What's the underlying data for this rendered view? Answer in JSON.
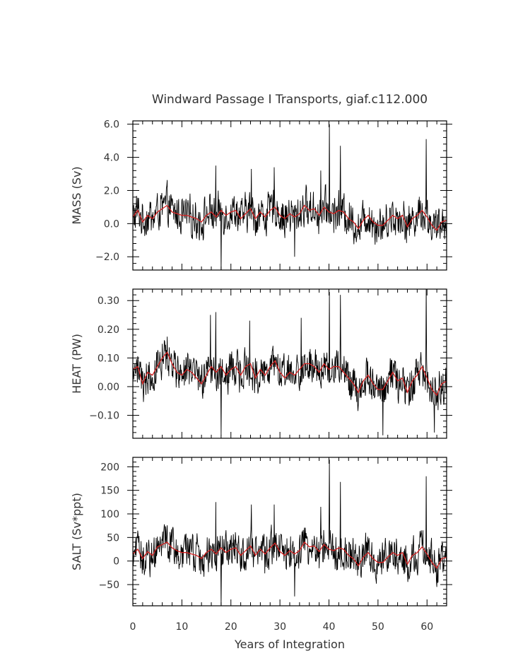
{
  "chart_data": {
    "type": "line",
    "title": "Windward Passage I Transports, giaf.c112.000",
    "xlabel": "Years of Integration",
    "xlim": [
      0,
      64
    ],
    "xticks": [
      0,
      10,
      20,
      30,
      40,
      50,
      60
    ],
    "xtick_labels": [
      "0",
      "10",
      "20",
      "30",
      "40",
      "50",
      "60"
    ],
    "line_colors": {
      "raw": "#000000",
      "smooth": "#d42020"
    },
    "panels": [
      {
        "ylabel": "MASS (Sv)",
        "ylim": [
          -2.8,
          6.2
        ],
        "yticks": [
          -2.0,
          0.0,
          2.0,
          4.0,
          6.0
        ],
        "ytick_labels": [
          "−2.0",
          "0.0",
          "2.0",
          "4.0",
          "6.0"
        ],
        "smooth": {
          "x": [
            0,
            1,
            2,
            3,
            4,
            5,
            6,
            7,
            8,
            9,
            10,
            11,
            12,
            13,
            14,
            15,
            16,
            17,
            18,
            19,
            20,
            21,
            22,
            23,
            24,
            25,
            26,
            27,
            28,
            29,
            30,
            31,
            32,
            33,
            34,
            35,
            36,
            37,
            38,
            39,
            40,
            41,
            42,
            43,
            44,
            45,
            46,
            47,
            48,
            49,
            50,
            51,
            52,
            53,
            54,
            55,
            56,
            57,
            58,
            59,
            60,
            61,
            62,
            63,
            64
          ],
          "y": [
            0.4,
            0.8,
            0.1,
            0.5,
            0.3,
            0.7,
            0.9,
            1.1,
            0.7,
            0.6,
            0.5,
            0.5,
            0.4,
            0.3,
            0.1,
            0.5,
            0.7,
            0.4,
            0.8,
            0.5,
            0.7,
            0.8,
            0.3,
            0.6,
            0.9,
            0.3,
            0.7,
            0.4,
            0.8,
            1.0,
            0.5,
            0.3,
            0.6,
            0.4,
            0.6,
            1.1,
            0.8,
            0.9,
            0.5,
            1.0,
            0.7,
            0.6,
            0.8,
            0.7,
            0.3,
            0.1,
            -0.3,
            0.2,
            0.5,
            0.1,
            -0.1,
            -0.1,
            0.2,
            0.5,
            0.3,
            0.5,
            -0.2,
            0.3,
            0.5,
            0.8,
            0.4,
            -0.1,
            -0.4,
            0.1,
            0.2
          ]
        },
        "peaks": [
          [
            16.9,
            3.5
          ],
          [
            18.0,
            -2.8
          ],
          [
            24.2,
            3.3
          ],
          [
            28.8,
            3.4
          ],
          [
            33.0,
            -2.0
          ],
          [
            38.3,
            3.2
          ],
          [
            40.1,
            6.0
          ],
          [
            42.3,
            4.7
          ],
          [
            59.8,
            5.1
          ]
        ]
      },
      {
        "ylabel": "HEAT (PW)",
        "ylim": [
          -0.18,
          0.34
        ],
        "yticks": [
          -0.1,
          0.0,
          0.1,
          0.2,
          0.3
        ],
        "ytick_labels": [
          "−0.10",
          "0.00",
          "0.10",
          "0.20",
          "0.30"
        ],
        "smooth": {
          "x": [
            0,
            1,
            2,
            3,
            4,
            5,
            6,
            7,
            8,
            9,
            10,
            11,
            12,
            13,
            14,
            15,
            16,
            17,
            18,
            19,
            20,
            21,
            22,
            23,
            24,
            25,
            26,
            27,
            28,
            29,
            30,
            31,
            32,
            33,
            34,
            35,
            36,
            37,
            38,
            39,
            40,
            41,
            42,
            43,
            44,
            45,
            46,
            47,
            48,
            49,
            50,
            51,
            52,
            53,
            54,
            55,
            56,
            57,
            58,
            59,
            60,
            61,
            62,
            63,
            64
          ],
          "y": [
            0.06,
            0.07,
            0.01,
            0.05,
            0.04,
            0.07,
            0.1,
            0.12,
            0.08,
            0.05,
            0.04,
            0.06,
            0.05,
            0.03,
            0.01,
            0.04,
            0.07,
            0.05,
            0.07,
            0.04,
            0.06,
            0.07,
            0.04,
            0.07,
            0.08,
            0.03,
            0.06,
            0.04,
            0.07,
            0.09,
            0.05,
            0.03,
            0.05,
            0.04,
            0.06,
            0.08,
            0.08,
            0.07,
            0.05,
            0.08,
            0.06,
            0.07,
            0.07,
            0.05,
            0.03,
            0.01,
            -0.02,
            0.02,
            0.04,
            0.01,
            -0.01,
            -0.01,
            0.02,
            0.05,
            0.02,
            0.03,
            -0.02,
            0.02,
            0.04,
            0.07,
            0.03,
            -0.01,
            -0.03,
            0.01,
            0.02
          ]
        },
        "peaks": [
          [
            15.8,
            0.25
          ],
          [
            16.9,
            0.26
          ],
          [
            18.0,
            -0.17
          ],
          [
            23.8,
            0.23
          ],
          [
            34.3,
            0.24
          ],
          [
            40.1,
            0.33
          ],
          [
            42.3,
            0.32
          ],
          [
            51.0,
            -0.17
          ],
          [
            59.8,
            0.35
          ],
          [
            61.5,
            -0.16
          ]
        ]
      },
      {
        "ylabel": "SALT (Sv*ppt)",
        "ylim": [
          -95,
          220
        ],
        "yticks": [
          -50,
          0,
          50,
          100,
          150,
          200
        ],
        "ytick_labels": [
          "−50",
          "0",
          "50",
          "100",
          "150",
          "200"
        ],
        "smooth": {
          "x": [
            0,
            1,
            2,
            3,
            4,
            5,
            6,
            7,
            8,
            9,
            10,
            11,
            12,
            13,
            14,
            15,
            16,
            17,
            18,
            19,
            20,
            21,
            22,
            23,
            24,
            25,
            26,
            27,
            28,
            29,
            30,
            31,
            32,
            33,
            34,
            35,
            36,
            37,
            38,
            39,
            40,
            41,
            42,
            43,
            44,
            45,
            46,
            47,
            48,
            49,
            50,
            51,
            52,
            53,
            54,
            55,
            56,
            57,
            58,
            59,
            60,
            61,
            62,
            63,
            64
          ],
          "y": [
            15,
            25,
            5,
            20,
            12,
            30,
            35,
            40,
            28,
            22,
            18,
            18,
            15,
            12,
            5,
            18,
            25,
            15,
            28,
            18,
            25,
            28,
            12,
            22,
            32,
            12,
            25,
            15,
            28,
            38,
            20,
            12,
            22,
            15,
            22,
            40,
            30,
            32,
            20,
            35,
            25,
            22,
            28,
            25,
            12,
            5,
            -10,
            8,
            18,
            5,
            -3,
            -3,
            8,
            18,
            12,
            18,
            -7,
            12,
            18,
            30,
            15,
            -3,
            -15,
            5,
            8
          ]
        },
        "peaks": [
          [
            16.9,
            125
          ],
          [
            18.0,
            -95
          ],
          [
            24.2,
            120
          ],
          [
            28.8,
            120
          ],
          [
            33.0,
            -75
          ],
          [
            38.3,
            115
          ],
          [
            40.1,
            215
          ],
          [
            42.3,
            168
          ],
          [
            59.8,
            180
          ]
        ]
      }
    ]
  }
}
